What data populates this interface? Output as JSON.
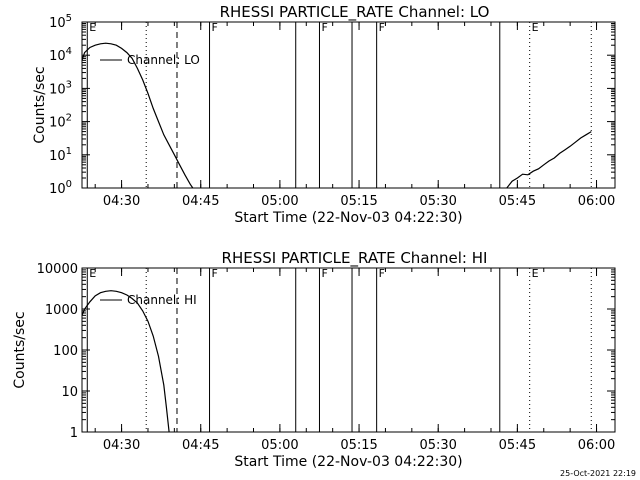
{
  "footer_timestamp": "25-Oct-2021 22:19",
  "chart_data": [
    {
      "type": "line",
      "title": "RHESSI PARTICLE_RATE Channel: LO",
      "xlabel": "Start Time (22-Nov-03 04:22:30)",
      "ylabel": "Counts/sec",
      "y_scale": "log",
      "ylim": [
        1,
        100000
      ],
      "xlim": [
        "04:22:30",
        "06:03:30"
      ],
      "y_tick_values": [
        1,
        10,
        100,
        1000,
        10000,
        100000
      ],
      "y_tick_labels": [
        {
          "base": "10",
          "exp": "0"
        },
        {
          "base": "10",
          "exp": "1"
        },
        {
          "base": "10",
          "exp": "2"
        },
        {
          "base": "10",
          "exp": "3"
        },
        {
          "base": "10",
          "exp": "4"
        },
        {
          "base": "10",
          "exp": "5"
        }
      ],
      "x_ticks": [
        {
          "time": "04:30",
          "label": "04:30"
        },
        {
          "time": "04:45",
          "label": "04:45"
        },
        {
          "time": "05:00",
          "label": "05:00"
        },
        {
          "time": "05:15",
          "label": "05:15"
        },
        {
          "time": "05:30",
          "label": "05:30"
        },
        {
          "time": "05:45",
          "label": "05:45"
        },
        {
          "time": "06:00",
          "label": "06:00"
        }
      ],
      "legend": {
        "label": "Channel: LO",
        "position": "top-left"
      },
      "series": [
        {
          "name": "Channel: LO",
          "points": [
            [
              "04:22:30",
              7000
            ],
            [
              "04:23:00",
              12000
            ],
            [
              "04:24:00",
              17000
            ],
            [
              "04:25:00",
              20000
            ],
            [
              "04:26:00",
              22000
            ],
            [
              "04:27:00",
              23000
            ],
            [
              "04:28:00",
              22000
            ],
            [
              "04:29:00",
              20000
            ],
            [
              "04:30:00",
              16000
            ],
            [
              "04:31:00",
              12000
            ],
            [
              "04:32:00",
              8000
            ],
            [
              "04:33:00",
              4000
            ],
            [
              "04:34:00",
              1800
            ],
            [
              "04:35:00",
              700
            ],
            [
              "04:36:00",
              250
            ],
            [
              "04:37:00",
              100
            ],
            [
              "04:38:00",
              40
            ],
            [
              "04:39:00",
              20
            ],
            [
              "04:40:00",
              10
            ],
            [
              "04:41:00",
              5
            ],
            [
              "04:42:00",
              2.5
            ],
            [
              "04:43:00",
              1.3
            ],
            [
              "04:43:30",
              1
            ]
          ]
        },
        {
          "name": "",
          "points": [
            [
              "05:43:00",
              1
            ],
            [
              "05:44:00",
              1.6
            ],
            [
              "05:45:00",
              2
            ],
            [
              "05:46:00",
              2.6
            ],
            [
              "05:47:00",
              2.5
            ],
            [
              "05:48:00",
              3.2
            ],
            [
              "05:49:00",
              3.8
            ],
            [
              "05:50:00",
              5
            ],
            [
              "05:51:00",
              6.5
            ],
            [
              "05:52:00",
              8
            ],
            [
              "05:53:00",
              11
            ],
            [
              "05:54:00",
              14
            ],
            [
              "05:55:00",
              18
            ],
            [
              "05:56:00",
              24
            ],
            [
              "05:57:00",
              32
            ],
            [
              "05:58:00",
              40
            ],
            [
              "05:59:00",
              50
            ]
          ]
        }
      ],
      "markers": [
        {
          "time": "04:23:30",
          "label": "E",
          "style": "solid"
        },
        {
          "time": "04:34:40",
          "label": "",
          "style": "dotted"
        },
        {
          "time": "04:40:30",
          "label": "",
          "style": "dashed"
        },
        {
          "time": "04:46:40",
          "label": "F",
          "style": "solid"
        },
        {
          "time": "05:03:00",
          "label": "",
          "style": "solid"
        },
        {
          "time": "05:07:30",
          "label": "F",
          "style": "solid"
        },
        {
          "time": "05:13:40",
          "label": "",
          "style": "solid"
        },
        {
          "time": "05:18:20",
          "label": "F",
          "style": "solid"
        },
        {
          "time": "05:41:40",
          "label": "",
          "style": "solid"
        },
        {
          "time": "05:47:20",
          "label": "E",
          "style": "dotted"
        },
        {
          "time": "05:59:00",
          "label": "",
          "style": "dotted"
        }
      ]
    },
    {
      "type": "line",
      "title": "RHESSI PARTICLE_RATE Channel: HI",
      "xlabel": "Start Time (22-Nov-03 04:22:30)",
      "ylabel": "Counts/sec",
      "y_scale": "log",
      "ylim": [
        1,
        10000
      ],
      "xlim": [
        "04:22:30",
        "06:03:30"
      ],
      "y_tick_values": [
        1,
        10,
        100,
        1000,
        10000
      ],
      "y_tick_labels": [
        {
          "base": "1",
          "exp": ""
        },
        {
          "base": "10",
          "exp": ""
        },
        {
          "base": "100",
          "exp": ""
        },
        {
          "base": "1000",
          "exp": ""
        },
        {
          "base": "10000",
          "exp": ""
        }
      ],
      "x_ticks": [
        {
          "time": "04:30",
          "label": "04:30"
        },
        {
          "time": "04:45",
          "label": "04:45"
        },
        {
          "time": "05:00",
          "label": "05:00"
        },
        {
          "time": "05:15",
          "label": "05:15"
        },
        {
          "time": "05:30",
          "label": "05:30"
        },
        {
          "time": "05:45",
          "label": "05:45"
        },
        {
          "time": "06:00",
          "label": "06:00"
        }
      ],
      "legend": {
        "label": "Channel: HI",
        "position": "top-left"
      },
      "series": [
        {
          "name": "Channel: HI",
          "points": [
            [
              "04:22:30",
              700
            ],
            [
              "04:23:00",
              1000
            ],
            [
              "04:24:00",
              1500
            ],
            [
              "04:25:00",
              2100
            ],
            [
              "04:26:00",
              2500
            ],
            [
              "04:27:00",
              2700
            ],
            [
              "04:28:00",
              2800
            ],
            [
              "04:29:00",
              2700
            ],
            [
              "04:30:00",
              2500
            ],
            [
              "04:31:00",
              2200
            ],
            [
              "04:32:00",
              1800
            ],
            [
              "04:33:00",
              1400
            ],
            [
              "04:34:00",
              900
            ],
            [
              "04:35:00",
              500
            ],
            [
              "04:36:00",
              220
            ],
            [
              "04:37:00",
              70
            ],
            [
              "04:38:00",
              14
            ],
            [
              "04:38:30",
              4
            ],
            [
              "04:39:00",
              1
            ]
          ]
        }
      ],
      "markers": [
        {
          "time": "04:23:30",
          "label": "E",
          "style": "solid"
        },
        {
          "time": "04:34:40",
          "label": "",
          "style": "dotted"
        },
        {
          "time": "04:40:30",
          "label": "",
          "style": "dashed"
        },
        {
          "time": "04:46:40",
          "label": "F",
          "style": "solid"
        },
        {
          "time": "05:03:00",
          "label": "",
          "style": "solid"
        },
        {
          "time": "05:07:30",
          "label": "F",
          "style": "solid"
        },
        {
          "time": "05:13:40",
          "label": "",
          "style": "solid"
        },
        {
          "time": "05:18:20",
          "label": "F",
          "style": "solid"
        },
        {
          "time": "05:41:40",
          "label": "",
          "style": "solid"
        },
        {
          "time": "05:47:20",
          "label": "E",
          "style": "dotted"
        },
        {
          "time": "05:59:00",
          "label": "",
          "style": "dotted"
        }
      ]
    }
  ]
}
